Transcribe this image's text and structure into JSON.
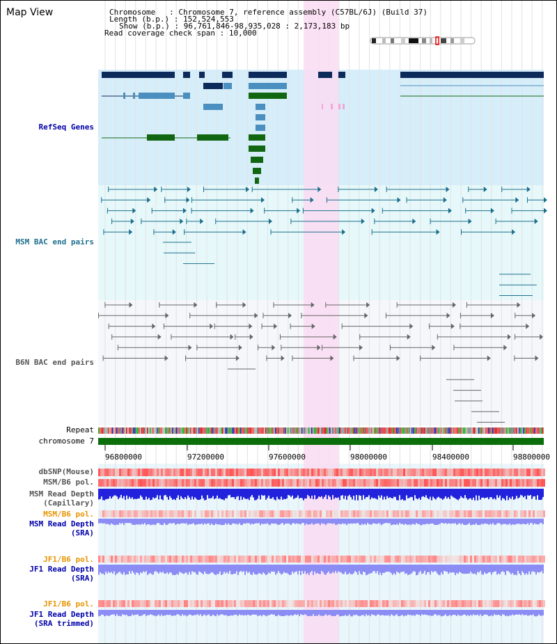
{
  "title": "Map View",
  "info": {
    "chromosome_label": "Chromosome",
    "chromosome_value": "Chromosome 7, reference assembly (C57BL/6J) (Build 37)",
    "length_label": "Length (b.p.)",
    "length_value": "152,524,553",
    "show_label": "Show (b.p.)",
    "show_value": "96,761,846-98,935,028 : 2,173,183 bp",
    "coverage_label": "Read coverage check span",
    "coverage_value": "10,000"
  },
  "tracks": {
    "refseq": "RefSeq Genes",
    "msm_bac": "MSM BAC end pairs",
    "b6n_bac": "B6N BAC end pairs",
    "repeat": "Repeat",
    "chromosome": "chromosome 7",
    "dbsnp": "dbSNP(Mouse)",
    "msm_b6_pol_1": "MSM/B6 pol.",
    "msm_read_depth_cap_1": "MSM Read Depth",
    "msm_read_depth_cap_2": "(Capillary)",
    "msm_b6_pol_2": "MSM/B6 pol.",
    "msm_read_depth_sra_1": "MSM Read Depth",
    "msm_read_depth_sra_2": "(SRA)",
    "jf1_b6_pol_1": "JF1/B6 pol.",
    "jf1_read_depth_sra_1": "JF1 Read Depth",
    "jf1_read_depth_sra_2": "(SRA)",
    "jf1_b6_pol_2": "JF1/B6 pol.",
    "jf1_read_depth_trim_1": "JF1 Read Depth",
    "jf1_read_depth_trim_2": "(SRA trimmed)"
  },
  "axis_ticks": [
    "96800000",
    "97200000",
    "97600000",
    "98000000",
    "98400000",
    "98800000"
  ],
  "colors": {
    "highlight": "#fadcf2",
    "refseq_bg": "#d6eefa",
    "msm_bg": "#e6f8fa",
    "b6n_bg": "#f5f7fb",
    "navy": "#0c2a5a",
    "steel": "#4a8fbf",
    "green": "#116611",
    "chromosome_bar": "#0b6e0b",
    "depth_blue": "#2222dd",
    "depth_light": "#8c8cf5"
  }
}
